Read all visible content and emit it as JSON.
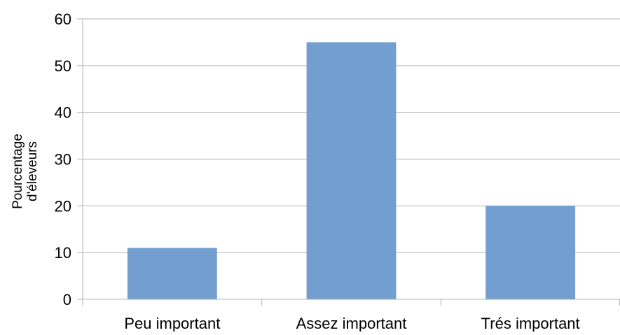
{
  "chart_data": {
    "type": "bar",
    "categories": [
      "Peu important",
      "Assez important",
      "Trés important"
    ],
    "values": [
      11,
      55,
      20
    ],
    "ylabel_lines": [
      "Pourcentage",
      "d'éleveurs"
    ],
    "ylim": [
      0,
      60
    ],
    "yticks": [
      0,
      10,
      20,
      30,
      40,
      50,
      60
    ],
    "grid": true,
    "legend": "none",
    "colors": {
      "bar": "#729fcf",
      "grid": "#b3b3b3",
      "axis": "#b3b3b3"
    }
  }
}
